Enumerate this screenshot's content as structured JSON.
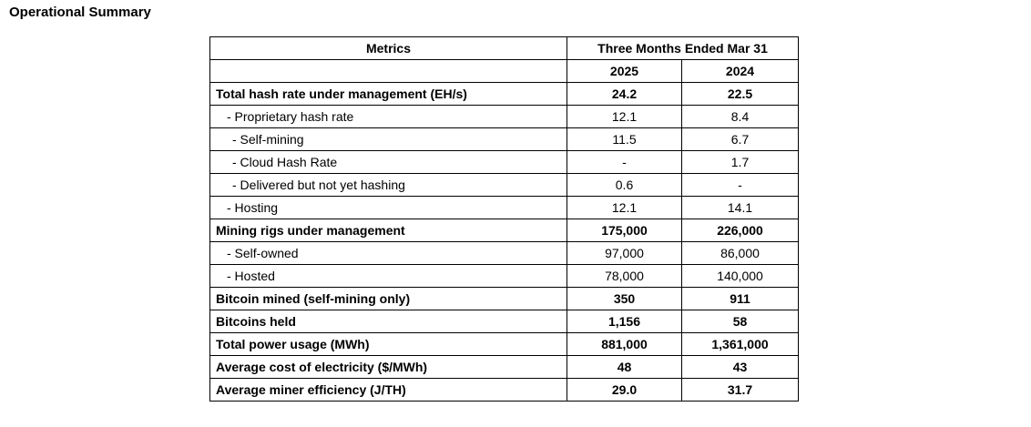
{
  "title": "Operational Summary",
  "table": {
    "header": {
      "metrics_label": "Metrics",
      "period_label": "Three Months Ended Mar 31",
      "years": [
        "2025",
        "2024"
      ]
    },
    "rows": [
      {
        "label": "Total hash rate under management (EH/s)",
        "v2025": "24.2",
        "v2024": "22.5",
        "bold": true,
        "indent": 0
      },
      {
        "label": "- Proprietary hash rate",
        "v2025": "12.1",
        "v2024": "8.4",
        "bold": false,
        "indent": 1
      },
      {
        "label": "- Self-mining",
        "v2025": "11.5",
        "v2024": "6.7",
        "bold": false,
        "indent": 2
      },
      {
        "label": "- Cloud Hash Rate",
        "v2025": "-",
        "v2024": "1.7",
        "bold": false,
        "indent": 2
      },
      {
        "label": "- Delivered but not yet hashing",
        "v2025": "0.6",
        "v2024": "-",
        "bold": false,
        "indent": 2
      },
      {
        "label": "- Hosting",
        "v2025": "12.1",
        "v2024": "14.1",
        "bold": false,
        "indent": 1
      },
      {
        "label": "Mining rigs under management",
        "v2025": "175,000",
        "v2024": "226,000",
        "bold": true,
        "indent": 0
      },
      {
        "label": "- Self-owned",
        "v2025": "97,000",
        "v2024": "86,000",
        "bold": false,
        "indent": 1
      },
      {
        "label": "- Hosted",
        "v2025": "78,000",
        "v2024": "140,000",
        "bold": false,
        "indent": 1
      },
      {
        "label": "Bitcoin mined (self-mining only)",
        "v2025": "350",
        "v2024": "911",
        "bold": true,
        "indent": 0
      },
      {
        "label": "Bitcoins held",
        "v2025": "1,156",
        "v2024": "58",
        "bold": true,
        "indent": 0
      },
      {
        "label": "Total power usage (MWh)",
        "v2025": "881,000",
        "v2024": "1,361,000",
        "bold": true,
        "indent": 0
      },
      {
        "label": "Average cost of electricity ($/MWh)",
        "v2025": "48",
        "v2024": "43",
        "bold": true,
        "indent": 0
      },
      {
        "label": "Average miner efficiency (J/TH)",
        "v2025": "29.0",
        "v2024": "31.7",
        "bold": true,
        "indent": 0
      }
    ]
  }
}
